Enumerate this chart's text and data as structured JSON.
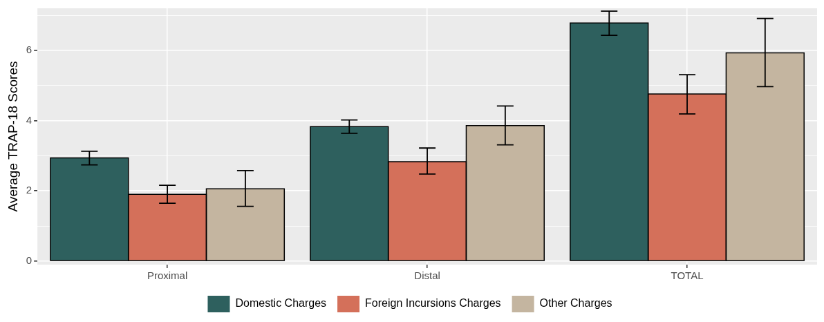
{
  "chart_data": {
    "type": "bar",
    "ylabel": "Average TRAP-18 Scores",
    "categories": [
      "Proximal",
      "Distal",
      "TOTAL"
    ],
    "series": [
      {
        "name": "Domestic Charges",
        "color": "#2e605e",
        "values": [
          2.94,
          3.83,
          6.78
        ],
        "errors": [
          [
            2.74,
            3.13
          ],
          [
            3.64,
            4.02
          ],
          [
            6.43,
            7.12
          ]
        ]
      },
      {
        "name": "Foreign Incursions Charges",
        "color": "#d4705a",
        "values": [
          1.9,
          2.83,
          4.76
        ],
        "errors": [
          [
            1.65,
            2.16
          ],
          [
            2.48,
            3.22
          ],
          [
            4.19,
            5.31
          ]
        ]
      },
      {
        "name": "Other Charges",
        "color": "#c4b5a0",
        "values": [
          2.06,
          3.86,
          5.93
        ],
        "errors": [
          [
            1.56,
            2.58
          ],
          [
            3.31,
            4.42
          ],
          [
            4.97,
            6.91
          ]
        ]
      }
    ],
    "ylim": [
      -0.1,
      7.2
    ],
    "yticks": [
      0,
      {
        "value": 1,
        "label": null
      },
      2,
      {
        "value": 3,
        "label": null
      },
      4,
      {
        "value": 5,
        "label": null
      },
      6,
      {
        "value": 7,
        "label": null
      }
    ],
    "grid": true,
    "legend": "bottom"
  }
}
